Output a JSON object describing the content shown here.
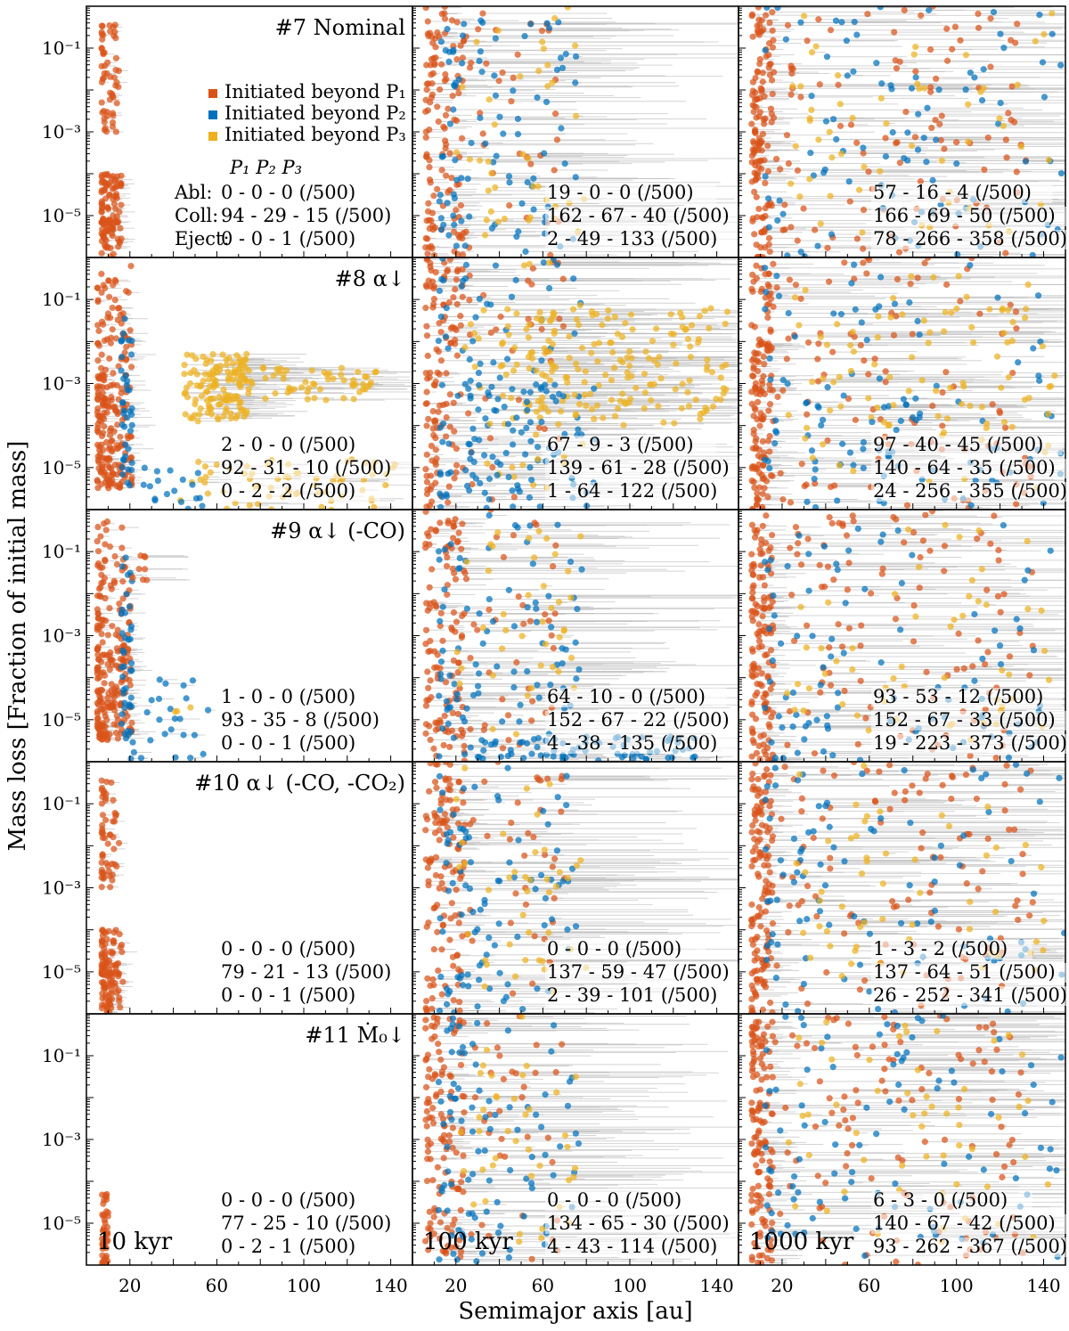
{
  "chart_data": {
    "type": "scatter",
    "layout": "5 rows x 3 columns grid of scatter panels",
    "xlabel": "Semimajor axis [au]",
    "ylabel": "Mass loss [Fraction of initial mass]",
    "xlim": [
      0,
      150
    ],
    "xticks": [
      20,
      60,
      100,
      140
    ],
    "xtick_labels": [
      "20",
      "60",
      "100",
      "140"
    ],
    "yscale": "log",
    "ylim": [
      1e-06,
      1.0
    ],
    "yticks": [
      0.1,
      0.001,
      1e-05
    ],
    "ytick_labels": [
      "10⁻¹",
      "10⁻³",
      "10⁻⁵"
    ],
    "colors": {
      "P1": "#d95319",
      "P2": "#0072bd",
      "P3": "#edb120",
      "trail": "#b8b8b8"
    },
    "legend": {
      "placement": "top-left panel, right side",
      "entries": [
        {
          "label": "Initiated beyond P₁",
          "color": "#d95319"
        },
        {
          "label": "Initiated beyond P₂",
          "color": "#0072bd"
        },
        {
          "label": "Initiated beyond P₃",
          "color": "#edb120"
        }
      ]
    },
    "stats_header": "P₁  P₂  P₃",
    "row_labels": [
      "Abl:",
      "Coll:",
      "Eject:"
    ],
    "columns": [
      "10 kyr",
      "100 kyr",
      "1000 kyr"
    ],
    "rows": [
      {
        "title": "#7 Nominal",
        "stats": [
          [
            "0 - 0 - 0 (/500)",
            "94 - 29 - 15 (/500)",
            "0 - 0 - 1 (/500)"
          ],
          [
            "19 - 0 - 0 (/500)",
            "162 - 67 - 40 (/500)",
            "2 - 49 - 133 (/500)"
          ],
          [
            "57 - 16 - 4 (/500)",
            "166 - 69 - 50 (/500)",
            "78 - 266 - 358 (/500)"
          ]
        ]
      },
      {
        "title": "#8 α↓",
        "stats": [
          [
            "2 - 0 - 0 (/500)",
            "92 - 31 - 10 (/500)",
            "0 - 2 - 2 (/500)"
          ],
          [
            "67 - 9 - 3 (/500)",
            "139 - 61 - 28 (/500)",
            "1 - 64 - 122 (/500)"
          ],
          [
            "97 - 40 - 45 (/500)",
            "140 - 64 - 35 (/500)",
            "24 - 256 - 355 (/500)"
          ]
        ]
      },
      {
        "title": "#9 α↓ (-CO)",
        "stats": [
          [
            "1 - 0 - 0 (/500)",
            "93 - 35 - 8 (/500)",
            "0 - 0 - 1 (/500)"
          ],
          [
            "64 - 10 - 0 (/500)",
            "152 - 67 - 22 (/500)",
            "4 - 38 - 135 (/500)"
          ],
          [
            "93 - 53 - 12 (/500)",
            "152 - 67 - 33 (/500)",
            "19 - 223 - 373 (/500)"
          ]
        ]
      },
      {
        "title": "#10 α↓ (-CO, -CO₂)",
        "stats": [
          [
            "0 - 0 - 0 (/500)",
            "79 - 21 - 13 (/500)",
            "0 - 0 - 1 (/500)"
          ],
          [
            "0 - 0 - 0 (/500)",
            "137 - 59 - 47 (/500)",
            "2 - 39 - 101 (/500)"
          ],
          [
            "1 - 3 - 2 (/500)",
            "137 - 64 - 51 (/500)",
            "26 - 252 - 341 (/500)"
          ]
        ]
      },
      {
        "title": "#11 Ṁ₀↓",
        "stats": [
          [
            "0 - 0 - 0 (/500)",
            "77 - 25 - 10 (/500)",
            "0 - 2 - 1 (/500)"
          ],
          [
            "0 - 0 - 0 (/500)",
            "134 - 65 - 30 (/500)",
            "4 - 43 - 114 (/500)"
          ],
          [
            "6 - 3 - 0 (/500)",
            "140 - 67 - 42 (/500)",
            "93 - 262 - 367 (/500)"
          ]
        ]
      }
    ]
  }
}
